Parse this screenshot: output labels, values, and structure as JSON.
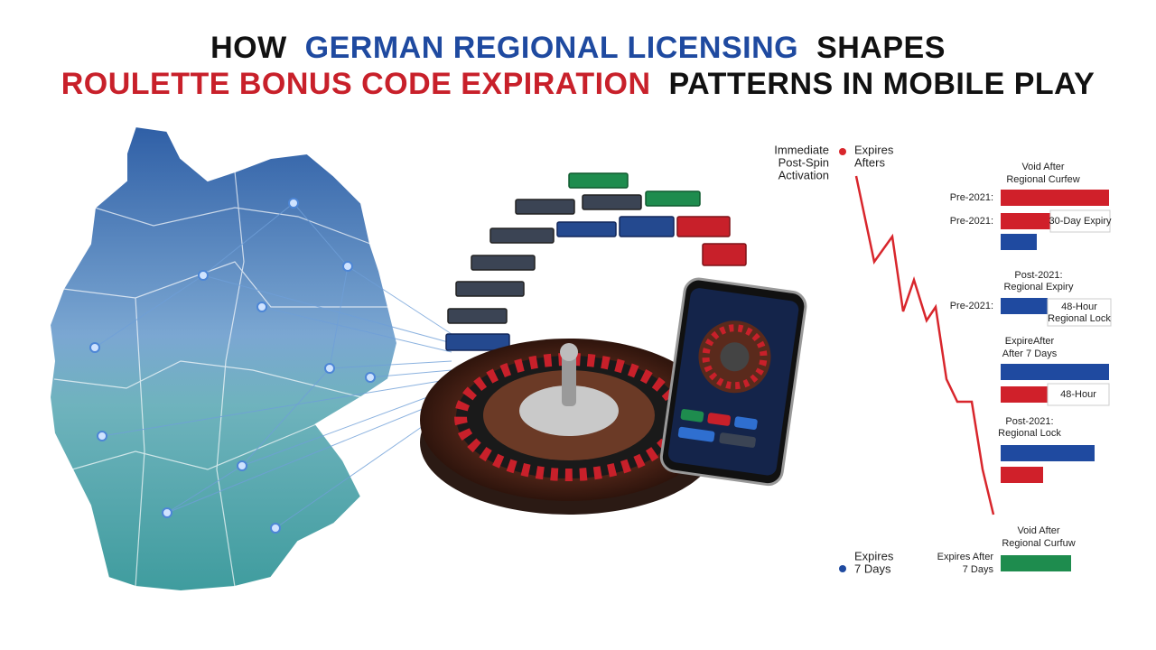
{
  "title": {
    "line1": [
      "HOW",
      "GERMAN REGIONAL LICENSING",
      "SHAPES"
    ],
    "line2": [
      "ROULETTE BONUS CODE EXPIRATION",
      "PATTERNS IN MOBILE PLAY"
    ]
  },
  "timeline": {
    "top_left": [
      "Immediate",
      "Post-Spin",
      "Activation"
    ],
    "top_right": [
      "Expires",
      "Afters"
    ],
    "bottom": [
      "Expires",
      "7 Days"
    ]
  },
  "labels": [
    {
      "lines": [
        "Void After",
        "Regional Curfew"
      ]
    },
    {
      "lines": [
        "Pre-2021:"
      ]
    },
    {
      "lines": [
        "Pre-2021:"
      ]
    },
    {
      "lines": [
        "30-Day Expiry"
      ]
    },
    {
      "lines": [
        "Post-2021:",
        "Regional Expiry"
      ]
    },
    {
      "lines": [
        "Pre-2021:"
      ]
    },
    {
      "lines": [
        "48-Hour",
        "Regional Lock"
      ]
    },
    {
      "lines": [
        "ExpireAfter",
        "After 7 Days"
      ]
    },
    {
      "lines": [
        "48-Hour"
      ]
    },
    {
      "lines": [
        "Post-2021:",
        "Regional Lock"
      ]
    },
    {
      "lines": [
        "Void After",
        "Regional Curfuw"
      ]
    },
    {
      "lines": [
        "Expires After",
        "7 Days"
      ]
    }
  ]
}
